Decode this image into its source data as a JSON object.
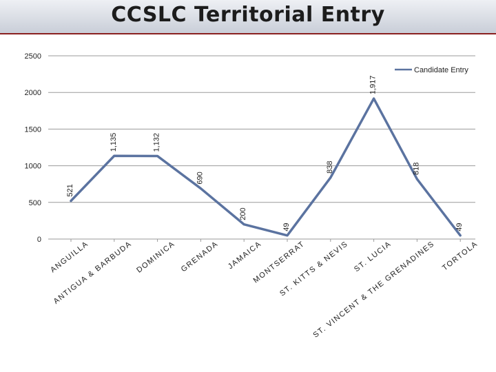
{
  "header": {
    "title": "CCSLC Territorial Entry"
  },
  "chart_data": {
    "type": "line",
    "title": "",
    "xlabel": "",
    "ylabel": "",
    "ylim": [
      0,
      2500
    ],
    "yticks": [
      0,
      500,
      1000,
      1500,
      2000,
      2500
    ],
    "grid": true,
    "legend_position": "top-right",
    "categories": [
      "ANGUILLA",
      "ANTIGUA & BARBUDA",
      "DOMINICA",
      "GRENADA",
      "JAMAICA",
      "MONTSERRAT",
      "ST. KITTS & NEVIS",
      "ST. LUCIA",
      "ST. VINCENT & THE GRENADINES",
      "TORTOLA"
    ],
    "series": [
      {
        "name": "Candidate Entry",
        "color": "#5b73a0",
        "values": [
          521,
          1135,
          1132,
          690,
          200,
          49,
          838,
          1917,
          818,
          49
        ],
        "labels": [
          "521",
          "1,135",
          "1,132",
          "690",
          "200",
          "49",
          "838",
          "1,917",
          "818",
          "49"
        ]
      }
    ]
  }
}
